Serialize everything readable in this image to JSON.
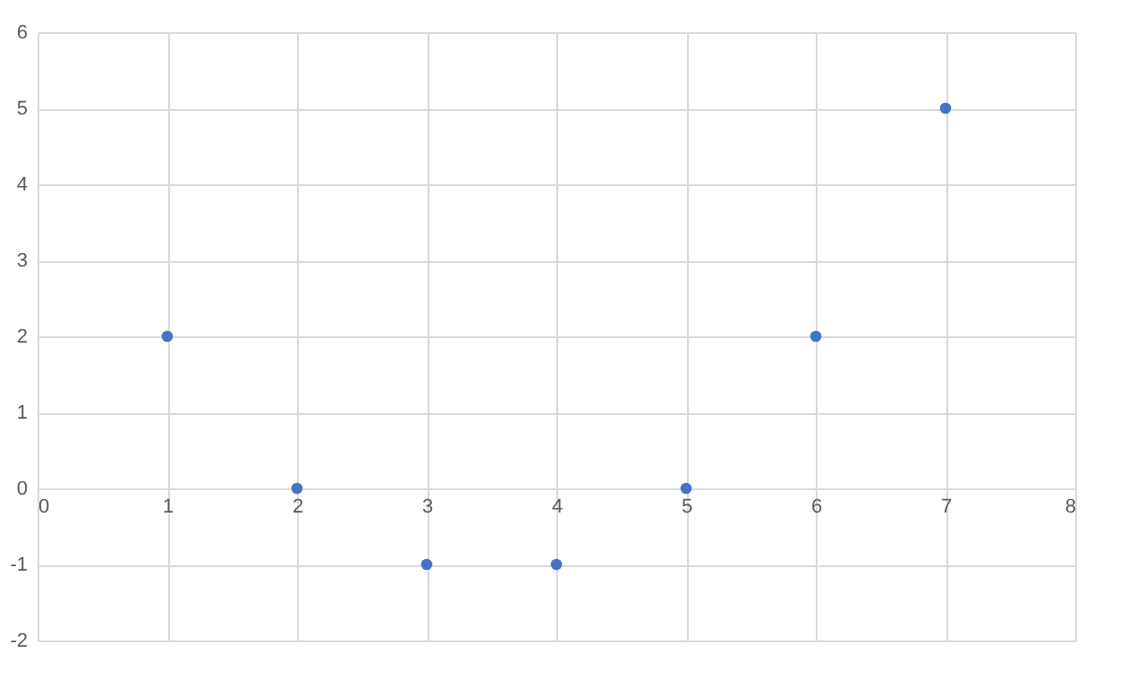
{
  "chart_data": {
    "type": "scatter",
    "x": [
      1,
      2,
      3,
      4,
      5,
      6,
      7
    ],
    "series": [
      {
        "color": "#4472c4",
        "values": [
          2,
          0,
          -1,
          -1,
          0,
          2,
          5
        ]
      }
    ],
    "xlim": [
      0,
      8
    ],
    "xticks": [
      0,
      1,
      2,
      3,
      4,
      5,
      6,
      7,
      8
    ],
    "ylim": [
      -2,
      6
    ],
    "yticks": [
      -2,
      -1,
      0,
      1,
      2,
      3,
      4,
      5,
      6
    ],
    "grid": true,
    "marker": "circle"
  }
}
